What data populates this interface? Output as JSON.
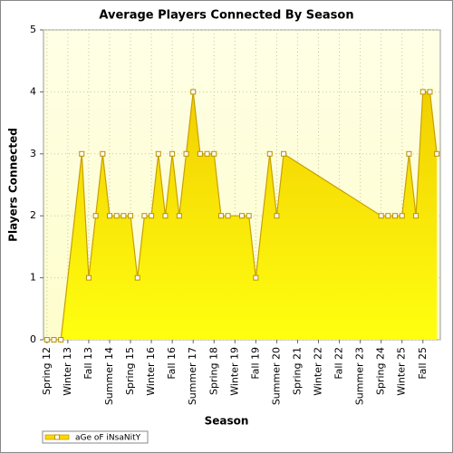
{
  "chart_data": {
    "type": "area",
    "title": "Average Players Connected By Season",
    "x_label": "Season",
    "y_label": "Players Connected",
    "categories": [
      "Spring 12",
      null,
      null,
      "Winter 13",
      null,
      null,
      "Fall 13",
      null,
      null,
      "Summer 14",
      null,
      null,
      "Spring 15",
      null,
      null,
      "Winter 16",
      null,
      null,
      "Fall 16",
      null,
      null,
      "Summer 17",
      null,
      null,
      "Spring 18",
      null,
      null,
      "Winter 19",
      null,
      null,
      "Fall 19",
      null,
      null,
      "Summer 20",
      null,
      null,
      "Spring 21",
      null,
      null,
      "Winter 22",
      null,
      null,
      "Fall 22",
      null,
      null,
      "Summer 23",
      null,
      null,
      "Spring 24",
      null,
      null,
      "Winter 25",
      null,
      null,
      "Fall 25",
      null,
      null
    ],
    "series": [
      {
        "name": "aGe oF iNsaNitY",
        "color": "#ffd700",
        "values": [
          0,
          0,
          0,
          null,
          null,
          3,
          1,
          2,
          3,
          2,
          2,
          2,
          2,
          1,
          2,
          2,
          3,
          2,
          3,
          2,
          3,
          4,
          3,
          3,
          3,
          2,
          2,
          null,
          2,
          2,
          1,
          null,
          3,
          2,
          3,
          null,
          null,
          null,
          null,
          null,
          null,
          null,
          null,
          null,
          null,
          null,
          null,
          null,
          2,
          2,
          2,
          2,
          3,
          2,
          4,
          4,
          3
        ]
      }
    ],
    "connect_gaps": true,
    "ylim": [
      0,
      5
    ],
    "yticks": [
      0,
      1,
      2,
      3,
      4,
      5
    ],
    "grid": true,
    "legend": "bottom-left"
  }
}
